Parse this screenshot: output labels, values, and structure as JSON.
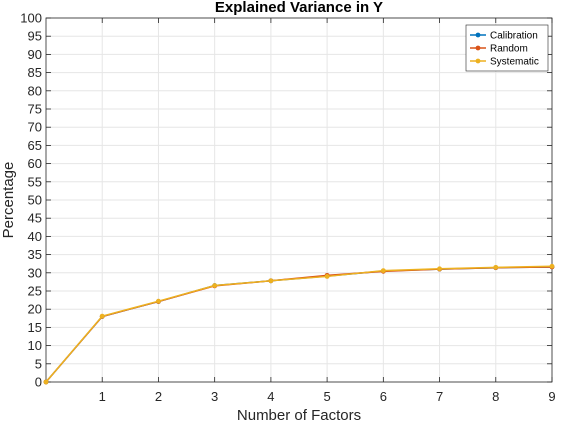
{
  "chart_data": {
    "type": "line",
    "title": "Explained Variance in Y",
    "xlabel": "Number of Factors",
    "ylabel": "Percentage",
    "xlim": [
      0,
      9
    ],
    "ylim": [
      0,
      100
    ],
    "xticks": [
      "1",
      "2",
      "3",
      "4",
      "5",
      "6",
      "7",
      "8",
      "9"
    ],
    "yticks": [
      "0",
      "5",
      "10",
      "15",
      "20",
      "25",
      "30",
      "35",
      "40",
      "45",
      "50",
      "55",
      "60",
      "65",
      "70",
      "75",
      "80",
      "85",
      "90",
      "95",
      "100"
    ],
    "grid": true,
    "legend_position": "top-right",
    "x": [
      0,
      1,
      2,
      3,
      4,
      5,
      6,
      7,
      8,
      9
    ],
    "series": [
      {
        "name": "Calibration",
        "color": "#0072BD",
        "values": [
          0,
          18.0,
          22.1,
          26.5,
          27.8,
          29.1,
          30.5,
          31.0,
          31.4,
          31.6
        ]
      },
      {
        "name": "Random",
        "color": "#D95319",
        "values": [
          0,
          18.0,
          22.1,
          26.4,
          27.8,
          29.3,
          30.4,
          31.0,
          31.4,
          31.6
        ]
      },
      {
        "name": "Systematic",
        "color": "#EDB120",
        "values": [
          0,
          18.1,
          22.2,
          26.5,
          27.8,
          29.0,
          30.6,
          31.1,
          31.5,
          31.8
        ]
      }
    ]
  }
}
